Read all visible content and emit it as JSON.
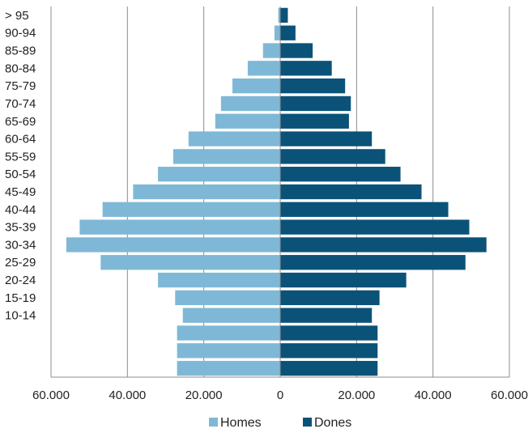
{
  "chart_data": {
    "type": "bar",
    "orientation": "horizontal",
    "subtype": "population-pyramid",
    "title": "",
    "xlabel": "",
    "ylabel": "",
    "categories": [
      "",
      "",
      "",
      "10-14",
      "15-19",
      "20-24",
      "25-29",
      "30-34",
      "35-39",
      "40-44",
      "45-49",
      "50-54",
      "55-59",
      "60-64",
      "65-69",
      "70-74",
      "75-79",
      "80-84",
      "85-89",
      "90-94",
      "> 95"
    ],
    "series": [
      {
        "name": "Homes",
        "color": "#7fb8d6",
        "side": "left",
        "values": [
          27000,
          27000,
          27000,
          25500,
          27500,
          32000,
          47000,
          56000,
          52500,
          46500,
          38500,
          32000,
          28000,
          24000,
          17000,
          15500,
          12500,
          8500,
          4500,
          1500,
          500
        ]
      },
      {
        "name": "Dones",
        "color": "#0b5278",
        "side": "right",
        "values": [
          25500,
          25500,
          25500,
          24000,
          26000,
          33000,
          48500,
          54000,
          49500,
          44000,
          37000,
          31500,
          27500,
          24000,
          18000,
          18500,
          17000,
          13500,
          8500,
          4000,
          2000
        ]
      }
    ],
    "xlim": [
      -60000,
      60000
    ],
    "xticks": [
      -60000,
      -40000,
      -20000,
      0,
      20000,
      40000,
      60000
    ],
    "xtick_labels": [
      "60.000",
      "40.000",
      "20.000",
      "0",
      "20.000",
      "40.000",
      "60.000"
    ],
    "grid": "vertical",
    "legend": "bottom"
  },
  "colors": {
    "homes": "#7fb8d6",
    "dones": "#0b5278",
    "grid": "#8c8c8c",
    "axis": "#8c8c8c"
  }
}
